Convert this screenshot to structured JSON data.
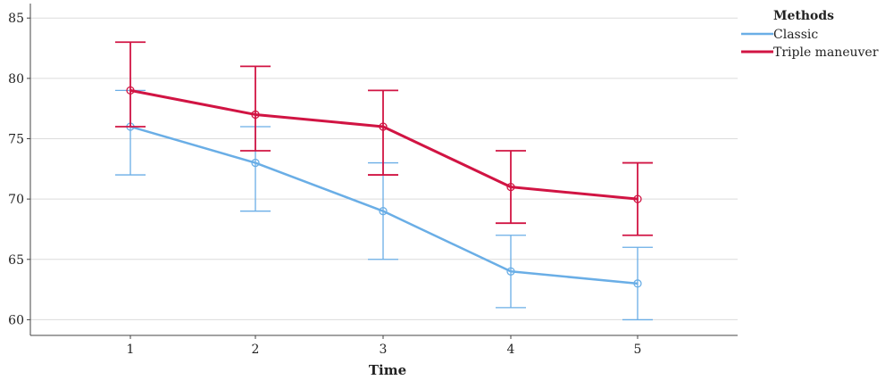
{
  "chart_data": {
    "type": "line",
    "xlabel": "Time",
    "ylabel": "",
    "x": [
      1,
      2,
      3,
      4,
      5
    ],
    "ylim": [
      58.7,
      86.2
    ],
    "yticks": [
      60,
      65,
      70,
      75,
      80,
      85
    ],
    "grid": "horizontal",
    "legend": {
      "title": "Methods",
      "position": "top-right, outside plot"
    },
    "series": [
      {
        "name": "Classic",
        "color": "#6aaee6",
        "values": [
          76,
          73,
          69,
          64,
          63
        ],
        "error_low": [
          72,
          69,
          65,
          61,
          60
        ],
        "error_high": [
          79,
          76,
          73,
          67,
          66
        ]
      },
      {
        "name": "Triple maneuver",
        "color": "#d11443",
        "values": [
          79,
          77,
          76,
          71,
          70
        ],
        "error_low": [
          76,
          74,
          72,
          68,
          67
        ],
        "error_high": [
          83,
          81,
          79,
          74,
          73
        ]
      }
    ]
  }
}
